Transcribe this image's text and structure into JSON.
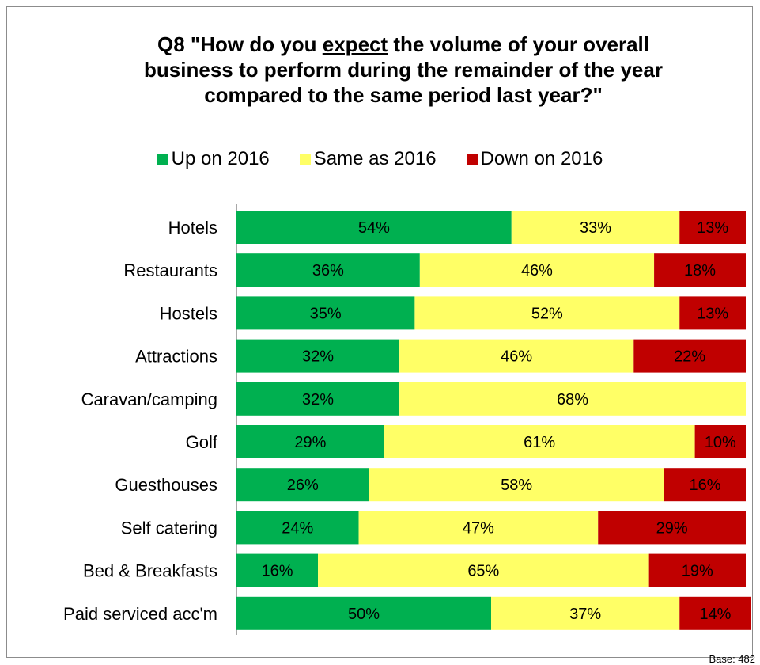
{
  "chart_data": {
    "type": "bar",
    "orientation": "horizontal",
    "stacked": true,
    "title_lines": [
      [
        "Q8 \"How do you ",
        "expect",
        " the volume of your overall"
      ],
      [
        "business to perform during the remainder of the year"
      ],
      [
        "compared to the same period last year?\""
      ]
    ],
    "categories": [
      "Hotels",
      "Restaurants",
      "Hostels",
      "Attractions",
      "Caravan/camping",
      "Golf",
      "Guesthouses",
      "Self catering",
      "Bed & Breakfasts",
      "Paid serviced acc'm"
    ],
    "series": [
      {
        "name": "Up on 2016",
        "color": "#00b050",
        "values": [
          54,
          36,
          35,
          32,
          32,
          29,
          26,
          24,
          16,
          50
        ]
      },
      {
        "name": "Same as 2016",
        "color": "#ffff66",
        "values": [
          33,
          46,
          52,
          46,
          68,
          61,
          58,
          47,
          65,
          37
        ]
      },
      {
        "name": "Down on 2016",
        "color": "#c00000",
        "values": [
          13,
          18,
          13,
          22,
          0,
          10,
          16,
          29,
          19,
          14
        ]
      }
    ],
    "value_suffix": "%",
    "xlim": [
      0,
      100
    ],
    "legend_position": "top",
    "grid": false,
    "base_note": "Base: 482"
  }
}
